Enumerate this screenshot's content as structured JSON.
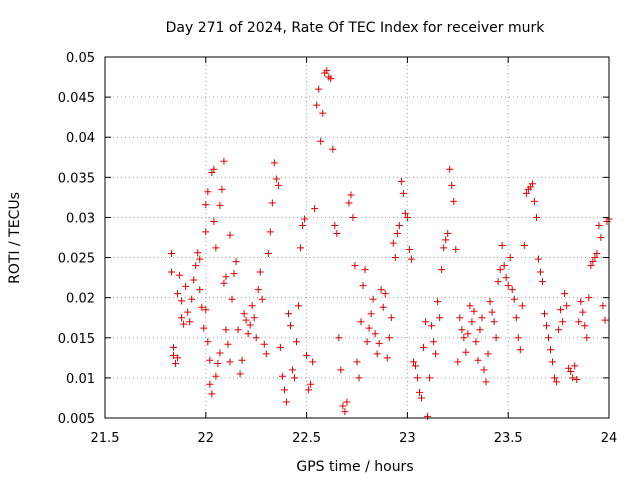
{
  "chart_data": {
    "type": "scatter",
    "title": "Day 271 of 2024, Rate Of TEC Index for receiver murk",
    "xlabel": "GPS time / hours",
    "ylabel": "ROTI / TECUs",
    "xlim": [
      21.5,
      24
    ],
    "ylim": [
      0.005,
      0.05
    ],
    "xticks": [
      21.5,
      22,
      22.5,
      23,
      23.5,
      24
    ],
    "xtick_labels": [
      "21.5",
      "22",
      "22.5",
      "23",
      "23.5",
      "24"
    ],
    "yticks": [
      0.005,
      0.01,
      0.015,
      0.02,
      0.025,
      0.03,
      0.035,
      0.04,
      0.045,
      0.05
    ],
    "ytick_labels": [
      "0.005",
      "0.01",
      "0.015",
      "0.02",
      "0.025",
      "0.03",
      "0.035",
      "0.04",
      "0.045",
      "0.05"
    ],
    "grid": true,
    "marker": "+",
    "color": "#dd0000",
    "series": [
      {
        "name": "ROTI",
        "points": [
          [
            21.83,
            0.0255
          ],
          [
            21.83,
            0.0232
          ],
          [
            21.84,
            0.0138
          ],
          [
            21.84,
            0.0128
          ],
          [
            21.85,
            0.0118
          ],
          [
            21.86,
            0.0125
          ],
          [
            21.86,
            0.0205
          ],
          [
            21.87,
            0.0228
          ],
          [
            21.88,
            0.0196
          ],
          [
            21.88,
            0.0175
          ],
          [
            21.89,
            0.0167
          ],
          [
            21.9,
            0.0214
          ],
          [
            21.91,
            0.0182
          ],
          [
            21.92,
            0.017
          ],
          [
            21.93,
            0.0198
          ],
          [
            21.94,
            0.0222
          ],
          [
            21.95,
            0.024
          ],
          [
            21.96,
            0.0256
          ],
          [
            21.97,
            0.0248
          ],
          [
            21.97,
            0.021
          ],
          [
            21.98,
            0.0188
          ],
          [
            21.99,
            0.0162
          ],
          [
            22.0,
            0.0185
          ],
          [
            22.0,
            0.0282
          ],
          [
            22.0,
            0.0316
          ],
          [
            22.01,
            0.0332
          ],
          [
            22.01,
            0.0145
          ],
          [
            22.02,
            0.0122
          ],
          [
            22.02,
            0.0092
          ],
          [
            22.03,
            0.008
          ],
          [
            22.03,
            0.0356
          ],
          [
            22.04,
            0.036
          ],
          [
            22.04,
            0.0295
          ],
          [
            22.05,
            0.0262
          ],
          [
            22.05,
            0.0102
          ],
          [
            22.06,
            0.0118
          ],
          [
            22.07,
            0.0131
          ],
          [
            22.07,
            0.0315
          ],
          [
            22.08,
            0.0335
          ],
          [
            22.09,
            0.037
          ],
          [
            22.09,
            0.0218
          ],
          [
            22.1,
            0.0226
          ],
          [
            22.1,
            0.016
          ],
          [
            22.11,
            0.0142
          ],
          [
            22.12,
            0.0278
          ],
          [
            22.12,
            0.012
          ],
          [
            22.13,
            0.0198
          ],
          [
            22.14,
            0.023
          ],
          [
            22.15,
            0.0245
          ],
          [
            22.16,
            0.016
          ],
          [
            22.17,
            0.0105
          ],
          [
            22.18,
            0.0122
          ],
          [
            22.19,
            0.018
          ],
          [
            22.2,
            0.0172
          ],
          [
            22.21,
            0.0155
          ],
          [
            22.22,
            0.0166
          ],
          [
            22.23,
            0.019
          ],
          [
            22.24,
            0.0175
          ],
          [
            22.25,
            0.015
          ],
          [
            22.26,
            0.021
          ],
          [
            22.27,
            0.0232
          ],
          [
            22.28,
            0.0198
          ],
          [
            22.29,
            0.0142
          ],
          [
            22.3,
            0.013
          ],
          [
            22.31,
            0.0255
          ],
          [
            22.32,
            0.0282
          ],
          [
            22.33,
            0.0318
          ],
          [
            22.34,
            0.0368
          ],
          [
            22.35,
            0.0348
          ],
          [
            22.36,
            0.034
          ],
          [
            22.37,
            0.0138
          ],
          [
            22.38,
            0.0102
          ],
          [
            22.39,
            0.0085
          ],
          [
            22.4,
            0.007
          ],
          [
            22.41,
            0.018
          ],
          [
            22.42,
            0.0165
          ],
          [
            22.43,
            0.011
          ],
          [
            22.44,
            0.01
          ],
          [
            22.45,
            0.0145
          ],
          [
            22.46,
            0.019
          ],
          [
            22.47,
            0.0262
          ],
          [
            22.48,
            0.029
          ],
          [
            22.49,
            0.0298
          ],
          [
            22.5,
            0.0128
          ],
          [
            22.51,
            0.0085
          ],
          [
            22.52,
            0.0092
          ],
          [
            22.53,
            0.012
          ],
          [
            22.54,
            0.0311
          ],
          [
            22.55,
            0.044
          ],
          [
            22.56,
            0.046
          ],
          [
            22.57,
            0.0395
          ],
          [
            22.58,
            0.043
          ],
          [
            22.59,
            0.048
          ],
          [
            22.6,
            0.0483
          ],
          [
            22.61,
            0.0475
          ],
          [
            22.62,
            0.0473
          ],
          [
            22.63,
            0.0385
          ],
          [
            22.64,
            0.029
          ],
          [
            22.65,
            0.028
          ],
          [
            22.66,
            0.015
          ],
          [
            22.67,
            0.011
          ],
          [
            22.68,
            0.0065
          ],
          [
            22.69,
            0.0058
          ],
          [
            22.7,
            0.007
          ],
          [
            22.71,
            0.0318
          ],
          [
            22.72,
            0.0328
          ],
          [
            22.73,
            0.03
          ],
          [
            22.74,
            0.024
          ],
          [
            22.75,
            0.012
          ],
          [
            22.76,
            0.01
          ],
          [
            22.77,
            0.017
          ],
          [
            22.78,
            0.0215
          ],
          [
            22.79,
            0.0235
          ],
          [
            22.8,
            0.0145
          ],
          [
            22.81,
            0.0162
          ],
          [
            22.82,
            0.018
          ],
          [
            22.83,
            0.0198
          ],
          [
            22.84,
            0.0155
          ],
          [
            22.85,
            0.013
          ],
          [
            22.86,
            0.0143
          ],
          [
            22.87,
            0.021
          ],
          [
            22.88,
            0.0188
          ],
          [
            22.89,
            0.0205
          ],
          [
            22.9,
            0.0125
          ],
          [
            22.91,
            0.015
          ],
          [
            22.92,
            0.0175
          ],
          [
            22.93,
            0.0268
          ],
          [
            22.94,
            0.025
          ],
          [
            22.95,
            0.028
          ],
          [
            22.96,
            0.029
          ],
          [
            22.97,
            0.0345
          ],
          [
            22.98,
            0.033
          ],
          [
            22.99,
            0.0305
          ],
          [
            23.0,
            0.03
          ],
          [
            23.01,
            0.026
          ],
          [
            23.02,
            0.0248
          ],
          [
            23.03,
            0.012
          ],
          [
            23.04,
            0.0115
          ],
          [
            23.05,
            0.01
          ],
          [
            23.06,
            0.0082
          ],
          [
            23.07,
            0.0075
          ],
          [
            23.08,
            0.0138
          ],
          [
            23.09,
            0.017
          ],
          [
            23.1,
            0.0052
          ],
          [
            23.11,
            0.01
          ],
          [
            23.12,
            0.0165
          ],
          [
            23.13,
            0.0145
          ],
          [
            23.14,
            0.013
          ],
          [
            23.15,
            0.0195
          ],
          [
            23.16,
            0.0175
          ],
          [
            23.17,
            0.0235
          ],
          [
            23.18,
            0.0262
          ],
          [
            23.19,
            0.0272
          ],
          [
            23.2,
            0.028
          ],
          [
            23.21,
            0.036
          ],
          [
            23.22,
            0.034
          ],
          [
            23.23,
            0.032
          ],
          [
            23.24,
            0.026
          ],
          [
            23.25,
            0.012
          ],
          [
            23.26,
            0.0175
          ],
          [
            23.27,
            0.016
          ],
          [
            23.28,
            0.015
          ],
          [
            23.29,
            0.0132
          ],
          [
            23.3,
            0.0155
          ],
          [
            23.31,
            0.019
          ],
          [
            23.32,
            0.017
          ],
          [
            23.33,
            0.0183
          ],
          [
            23.34,
            0.0145
          ],
          [
            23.35,
            0.0122
          ],
          [
            23.36,
            0.016
          ],
          [
            23.37,
            0.0175
          ],
          [
            23.38,
            0.011
          ],
          [
            23.39,
            0.0095
          ],
          [
            23.4,
            0.013
          ],
          [
            23.41,
            0.0195
          ],
          [
            23.42,
            0.0182
          ],
          [
            23.43,
            0.017
          ],
          [
            23.44,
            0.015
          ],
          [
            23.45,
            0.022
          ],
          [
            23.46,
            0.0235
          ],
          [
            23.47,
            0.0265
          ],
          [
            23.48,
            0.024
          ],
          [
            23.49,
            0.0225
          ],
          [
            23.5,
            0.0215
          ],
          [
            23.51,
            0.025
          ],
          [
            23.52,
            0.021
          ],
          [
            23.53,
            0.0198
          ],
          [
            23.54,
            0.0175
          ],
          [
            23.55,
            0.015
          ],
          [
            23.56,
            0.0135
          ],
          [
            23.57,
            0.019
          ],
          [
            23.58,
            0.0265
          ],
          [
            23.59,
            0.033
          ],
          [
            23.6,
            0.0335
          ],
          [
            23.61,
            0.0338
          ],
          [
            23.62,
            0.0342
          ],
          [
            23.63,
            0.032
          ],
          [
            23.64,
            0.03
          ],
          [
            23.65,
            0.0248
          ],
          [
            23.66,
            0.0232
          ],
          [
            23.67,
            0.022
          ],
          [
            23.68,
            0.018
          ],
          [
            23.69,
            0.0165
          ],
          [
            23.7,
            0.015
          ],
          [
            23.71,
            0.0135
          ],
          [
            23.72,
            0.012
          ],
          [
            23.73,
            0.01
          ],
          [
            23.74,
            0.0095
          ],
          [
            23.75,
            0.016
          ],
          [
            23.76,
            0.0185
          ],
          [
            23.77,
            0.017
          ],
          [
            23.78,
            0.0205
          ],
          [
            23.79,
            0.019
          ],
          [
            23.8,
            0.0112
          ],
          [
            23.81,
            0.0108
          ],
          [
            23.82,
            0.01
          ],
          [
            23.83,
            0.0115
          ],
          [
            23.84,
            0.0098
          ],
          [
            23.85,
            0.017
          ],
          [
            23.86,
            0.0195
          ],
          [
            23.87,
            0.0182
          ],
          [
            23.88,
            0.0165
          ],
          [
            23.89,
            0.015
          ],
          [
            23.9,
            0.02
          ],
          [
            23.91,
            0.024
          ],
          [
            23.92,
            0.0245
          ],
          [
            23.93,
            0.025
          ],
          [
            23.94,
            0.0255
          ],
          [
            23.95,
            0.029
          ],
          [
            23.96,
            0.0275
          ],
          [
            23.97,
            0.019
          ],
          [
            23.98,
            0.0172
          ],
          [
            23.99,
            0.0295
          ],
          [
            24.0,
            0.0298
          ]
        ]
      }
    ]
  }
}
